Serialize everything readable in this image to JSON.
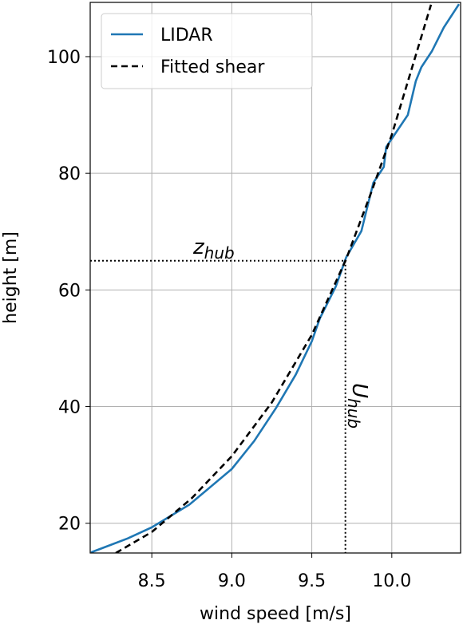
{
  "chart_data": {
    "type": "line",
    "xlabel": "wind speed [m/s]",
    "ylabel": "height [m]",
    "xlim": [
      8.115,
      10.43
    ],
    "ylim": [
      14.9,
      109.3
    ],
    "xticks": [
      8.5,
      {
        "value": 9,
        "label": "9.0"
      },
      9.5,
      {
        "value": 10,
        "label": "10.0"
      }
    ],
    "yticks": [
      20,
      40,
      60,
      80,
      100
    ],
    "grid": true,
    "legend": "upper left",
    "series": [
      {
        "name": "LIDAR",
        "color": "#1f77b4",
        "style": "solid",
        "x": [
          8.12,
          8.35,
          8.5,
          8.735,
          9.0,
          9.14,
          9.275,
          9.4,
          9.5,
          9.55,
          9.65,
          9.715,
          9.81,
          9.835,
          9.885,
          9.95,
          9.965,
          10.1,
          10.15,
          10.185,
          10.25,
          10.325,
          10.42
        ],
        "values": [
          15,
          17.4,
          19.3,
          23.2,
          29.3,
          34.1,
          39.7,
          45.5,
          51.2,
          55.1,
          60.6,
          65.6,
          70.1,
          72.9,
          78.4,
          81.1,
          84.5,
          90,
          95.8,
          98.2,
          100.9,
          105,
          109
        ]
      },
      {
        "name": "Fitted shear",
        "color": "#000000",
        "style": "dashed",
        "x": [
          8.275,
          8.5,
          8.75,
          9.0,
          9.25,
          9.5,
          9.715,
          9.875,
          10.0,
          10.245
        ],
        "values": [
          14.9,
          18.5,
          24.3,
          31.5,
          40.7,
          52.3,
          65.3,
          77,
          86.6,
          108.9
        ]
      }
    ],
    "hub": {
      "height": 65,
      "speed": 9.71,
      "height_label": {
        "text": "z",
        "subscript": "hub"
      },
      "speed_label": {
        "text": "U",
        "subscript": "hub"
      }
    }
  }
}
